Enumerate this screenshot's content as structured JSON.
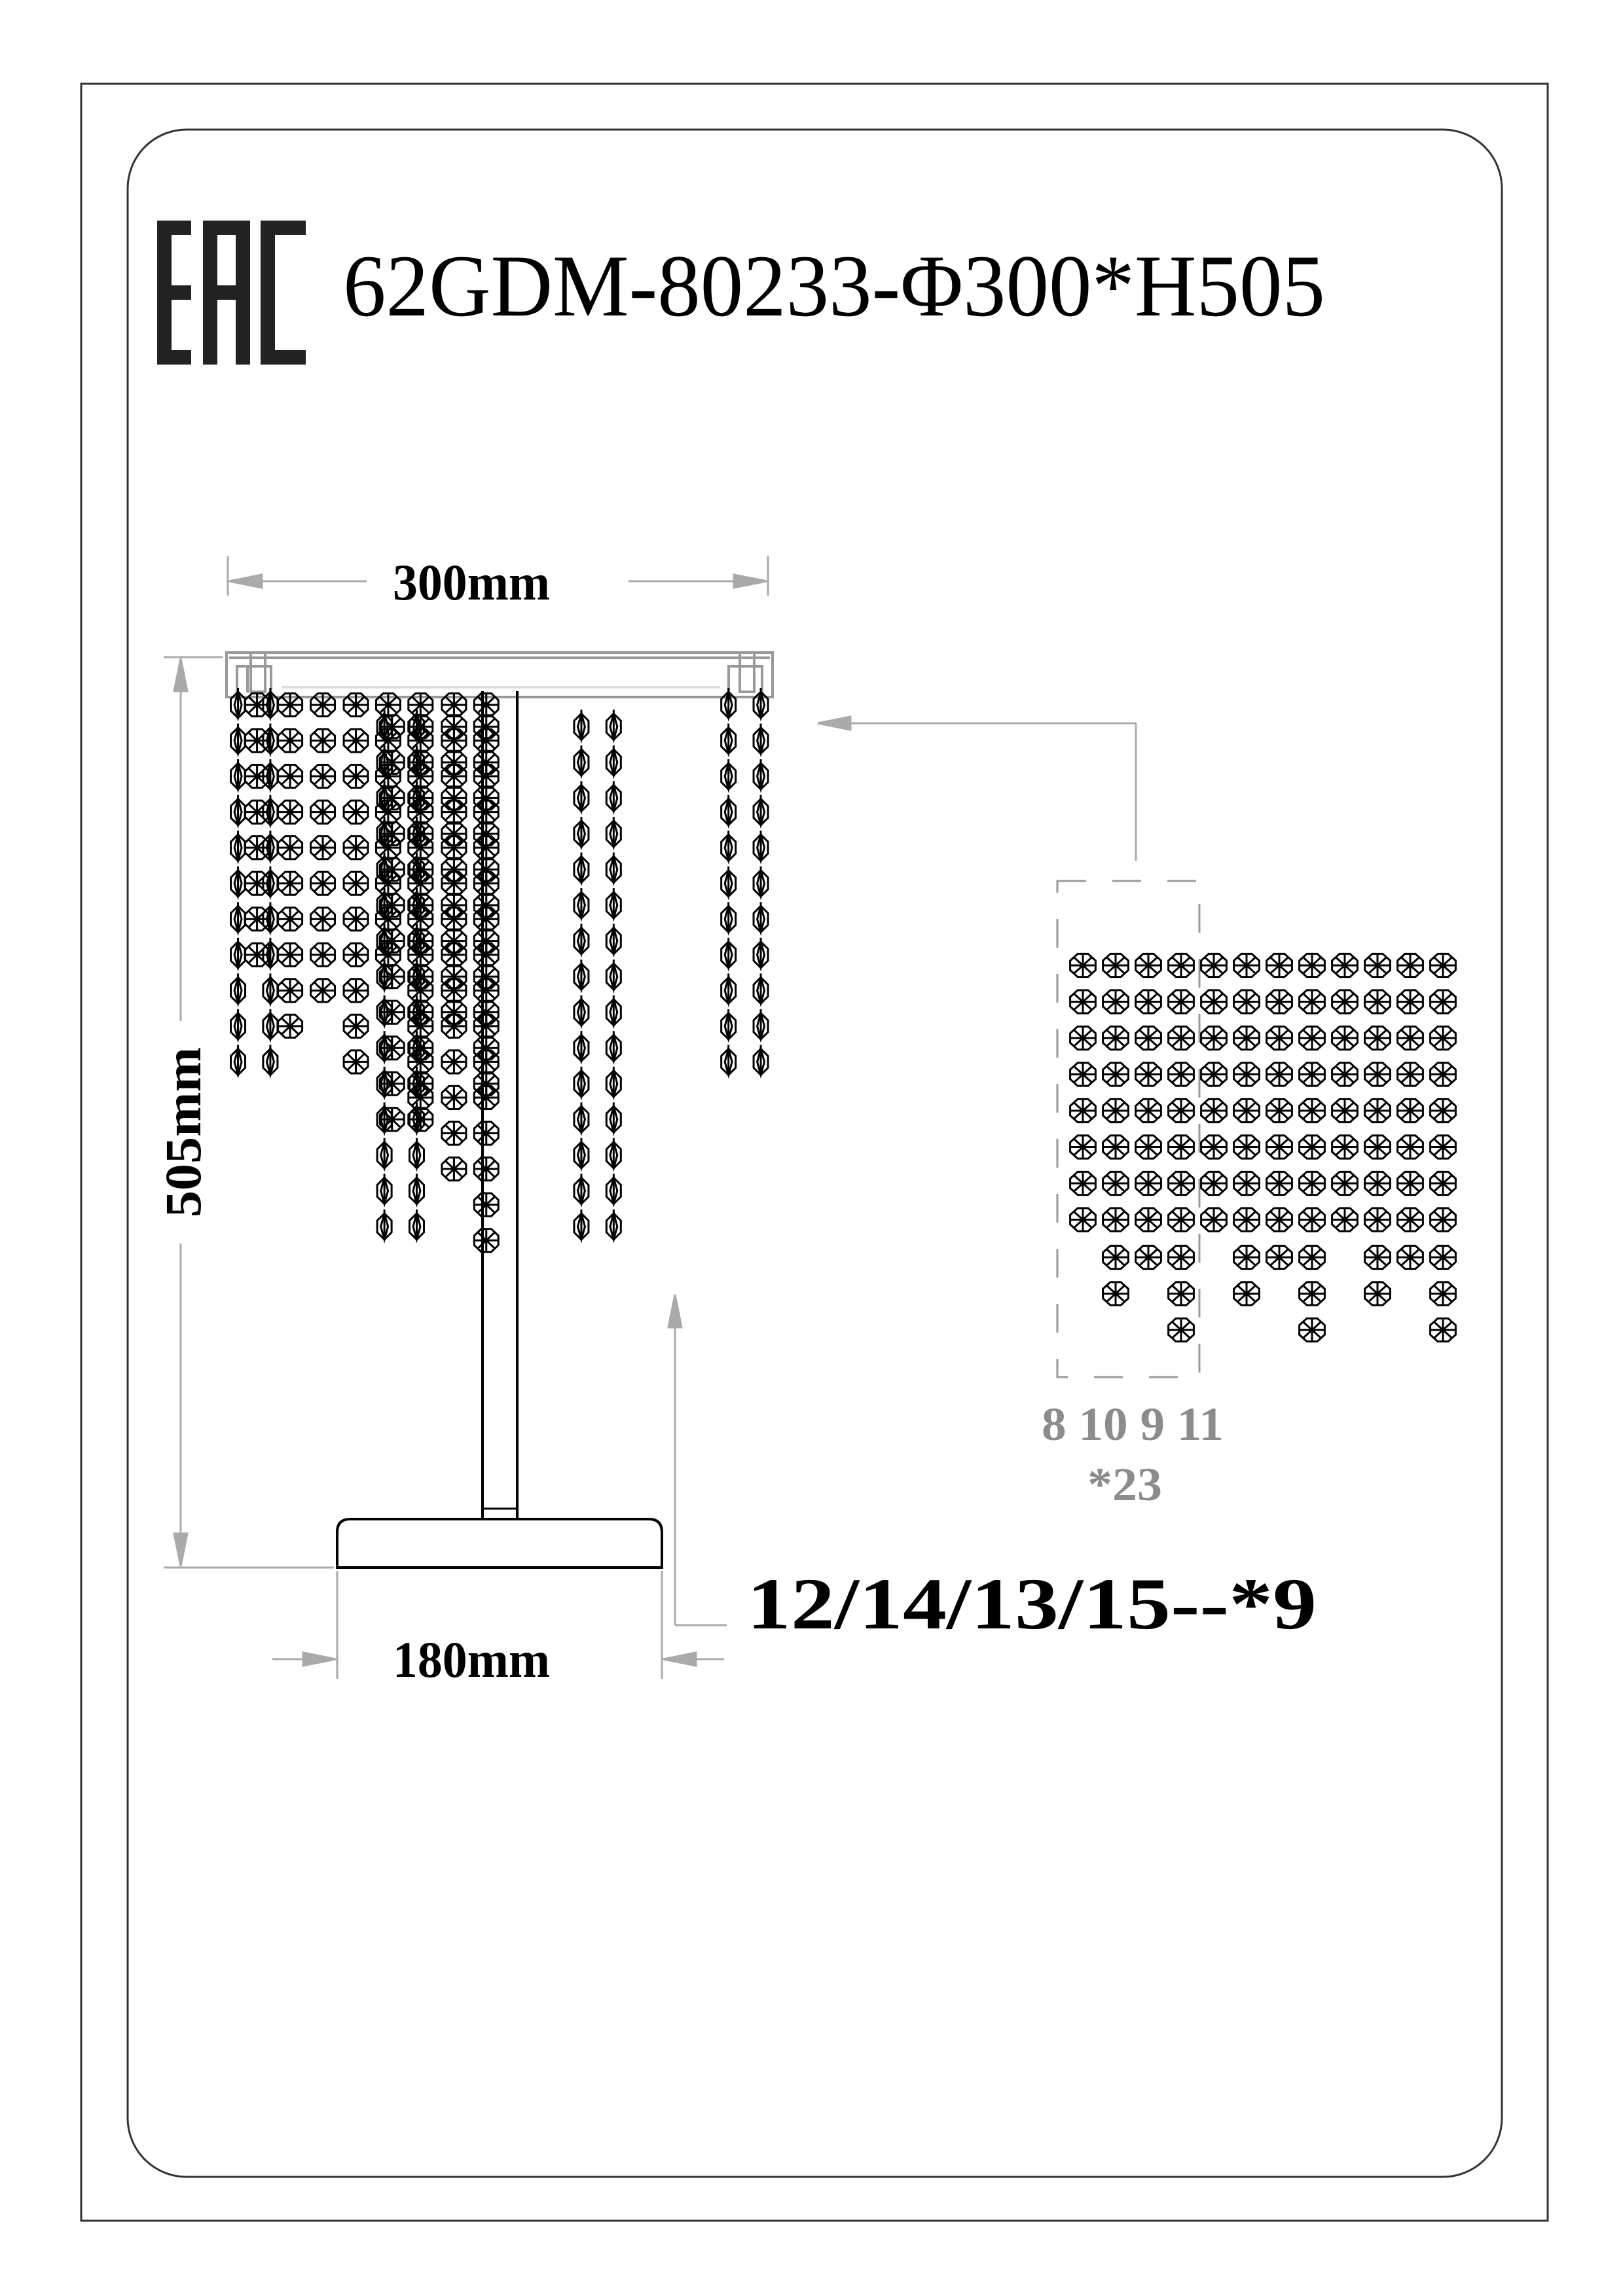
{
  "logo": {
    "text": "EAC",
    "name": "eac-certification-mark"
  },
  "title": "62GDM-80233-Φ300*H505",
  "dimensions": {
    "width_top": "300mm",
    "height": "505mm",
    "base_width": "180mm"
  },
  "parts": {
    "base_parts_label": "12/14/13/15--*9",
    "crystal_columns_label": "8 10 9 11",
    "crystal_quantity_label": "*23"
  },
  "colors": {
    "line": "#000000",
    "frame": "#999999",
    "dim": "#aaaaaa",
    "gray_label": "#8c8c8c"
  }
}
